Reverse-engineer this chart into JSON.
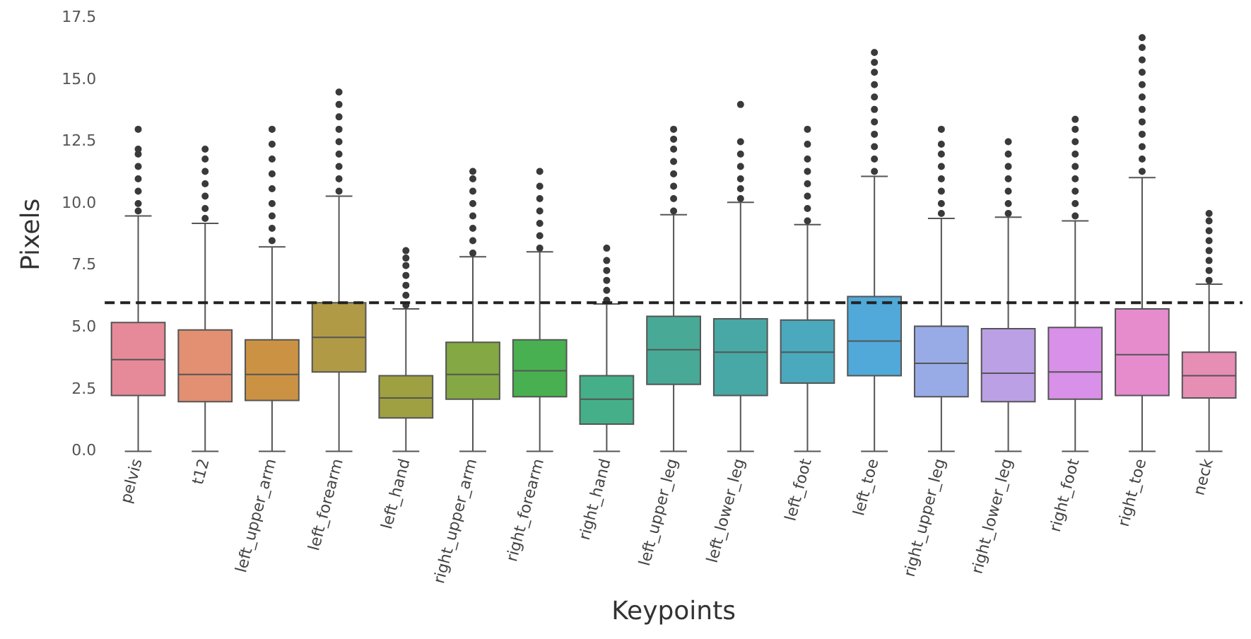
{
  "chart_data": {
    "type": "box",
    "xlabel": "Keypoints",
    "ylabel": "Pixels",
    "categories": [
      "pelvis",
      "t12",
      "left_upper_arm",
      "left_forearm",
      "left_hand",
      "right_upper_arm",
      "right_forearm",
      "right_hand",
      "left_upper_leg",
      "left_lower_leg",
      "left_foot",
      "left_toe",
      "right_upper_leg",
      "right_lower_leg",
      "right_foot",
      "right_toe",
      "neck"
    ],
    "colors": [
      "#e68a99",
      "#e38f72",
      "#cc9244",
      "#b09a45",
      "#9ea042",
      "#84a843",
      "#48b050",
      "#45af8a",
      "#48aa96",
      "#47a8a6",
      "#4aa9bd",
      "#50a9d8",
      "#98abe6",
      "#bba0e6",
      "#d890e8",
      "#e68ccd",
      "#e68eb4"
    ],
    "boxes": [
      {
        "low": 0,
        "q1": 2.25,
        "median": 3.7,
        "q3": 5.2,
        "high": 9.5,
        "outliers": [
          9.7,
          10.0,
          10.5,
          11.0,
          11.5,
          12.0,
          12.2,
          13.0
        ]
      },
      {
        "low": 0,
        "q1": 2.0,
        "median": 3.1,
        "q3": 4.9,
        "high": 9.2,
        "outliers": [
          9.4,
          9.8,
          10.3,
          10.8,
          11.3,
          11.8,
          12.2
        ]
      },
      {
        "low": 0,
        "q1": 2.05,
        "median": 3.1,
        "q3": 4.5,
        "high": 8.25,
        "outliers": [
          8.5,
          9.0,
          9.5,
          10.0,
          10.6,
          11.2,
          11.8,
          12.4,
          13.0
        ]
      },
      {
        "low": 0,
        "q1": 3.2,
        "median": 4.6,
        "q3": 6.0,
        "high": 10.3,
        "outliers": [
          10.5,
          11.0,
          11.5,
          12.0,
          12.5,
          13.0,
          13.5,
          14.0,
          14.5
        ]
      },
      {
        "low": 0,
        "q1": 1.35,
        "median": 2.15,
        "q3": 3.05,
        "high": 5.75,
        "outliers": [
          5.9,
          6.3,
          6.7,
          7.1,
          7.5,
          7.8,
          8.1
        ]
      },
      {
        "low": 0,
        "q1": 2.1,
        "median": 3.1,
        "q3": 4.4,
        "high": 7.85,
        "outliers": [
          8.0,
          8.5,
          9.0,
          9.5,
          10.0,
          10.5,
          11.0,
          11.3
        ]
      },
      {
        "low": 0,
        "q1": 2.2,
        "median": 3.25,
        "q3": 4.5,
        "high": 8.05,
        "outliers": [
          8.2,
          8.7,
          9.2,
          9.7,
          10.2,
          10.7,
          11.3
        ]
      },
      {
        "low": 0,
        "q1": 1.1,
        "median": 2.1,
        "q3": 3.05,
        "high": 5.95,
        "outliers": [
          6.1,
          6.5,
          6.9,
          7.3,
          7.7,
          8.2
        ]
      },
      {
        "low": 0,
        "q1": 2.7,
        "median": 4.1,
        "q3": 5.45,
        "high": 9.55,
        "outliers": [
          9.7,
          10.2,
          10.7,
          11.2,
          11.7,
          12.2,
          12.6,
          13.0
        ]
      },
      {
        "low": 0,
        "q1": 2.25,
        "median": 4.0,
        "q3": 5.35,
        "high": 10.05,
        "outliers": [
          10.2,
          10.6,
          11.0,
          11.5,
          12.0,
          12.5,
          14.0
        ]
      },
      {
        "low": 0,
        "q1": 2.75,
        "median": 4.0,
        "q3": 5.3,
        "high": 9.15,
        "outliers": [
          9.3,
          9.8,
          10.3,
          10.8,
          11.3,
          11.8,
          12.4,
          13.0
        ]
      },
      {
        "low": 0,
        "q1": 3.05,
        "median": 4.45,
        "q3": 6.25,
        "high": 11.1,
        "outliers": [
          11.3,
          11.8,
          12.3,
          12.8,
          13.3,
          13.8,
          14.3,
          14.8,
          15.3,
          15.7,
          16.1
        ]
      },
      {
        "low": 0,
        "q1": 2.2,
        "median": 3.55,
        "q3": 5.05,
        "high": 9.4,
        "outliers": [
          9.6,
          10.0,
          10.5,
          11.0,
          11.5,
          12.0,
          12.4,
          13.0
        ]
      },
      {
        "low": 0,
        "q1": 2.0,
        "median": 3.15,
        "q3": 4.95,
        "high": 9.45,
        "outliers": [
          9.6,
          10.0,
          10.5,
          11.0,
          11.5,
          12.0,
          12.5
        ]
      },
      {
        "low": 0,
        "q1": 2.1,
        "median": 3.2,
        "q3": 5.0,
        "high": 9.3,
        "outliers": [
          9.5,
          10.0,
          10.5,
          11.0,
          11.5,
          12.0,
          12.5,
          13.0,
          13.4
        ]
      },
      {
        "low": 0,
        "q1": 2.25,
        "median": 3.9,
        "q3": 5.75,
        "high": 11.05,
        "outliers": [
          11.3,
          11.8,
          12.3,
          12.8,
          13.3,
          13.8,
          14.3,
          14.8,
          15.3,
          15.8,
          16.3,
          16.7
        ]
      },
      {
        "low": 0,
        "q1": 2.15,
        "median": 3.05,
        "q3": 4.0,
        "high": 6.75,
        "outliers": [
          6.9,
          7.3,
          7.7,
          8.1,
          8.5,
          8.9,
          9.3,
          9.6
        ]
      }
    ],
    "ylim": [
      0,
      17.5
    ],
    "yticks": [
      {
        "value": 0,
        "label": "0.0"
      },
      {
        "value": 2.5,
        "label": "2.5"
      },
      {
        "value": 5,
        "label": "5.0"
      },
      {
        "value": 7.5,
        "label": "7.5"
      },
      {
        "value": 10,
        "label": "10.0"
      },
      {
        "value": 12.5,
        "label": "12.5"
      },
      {
        "value": 15,
        "label": "15.0"
      },
      {
        "value": 17.5,
        "label": "17.5"
      }
    ],
    "ref_lines": [
      {
        "axis": "y",
        "value": 6,
        "color": "#222222",
        "line_style": "dashed"
      }
    ],
    "grid": false,
    "legend": false,
    "marker": "circle"
  }
}
